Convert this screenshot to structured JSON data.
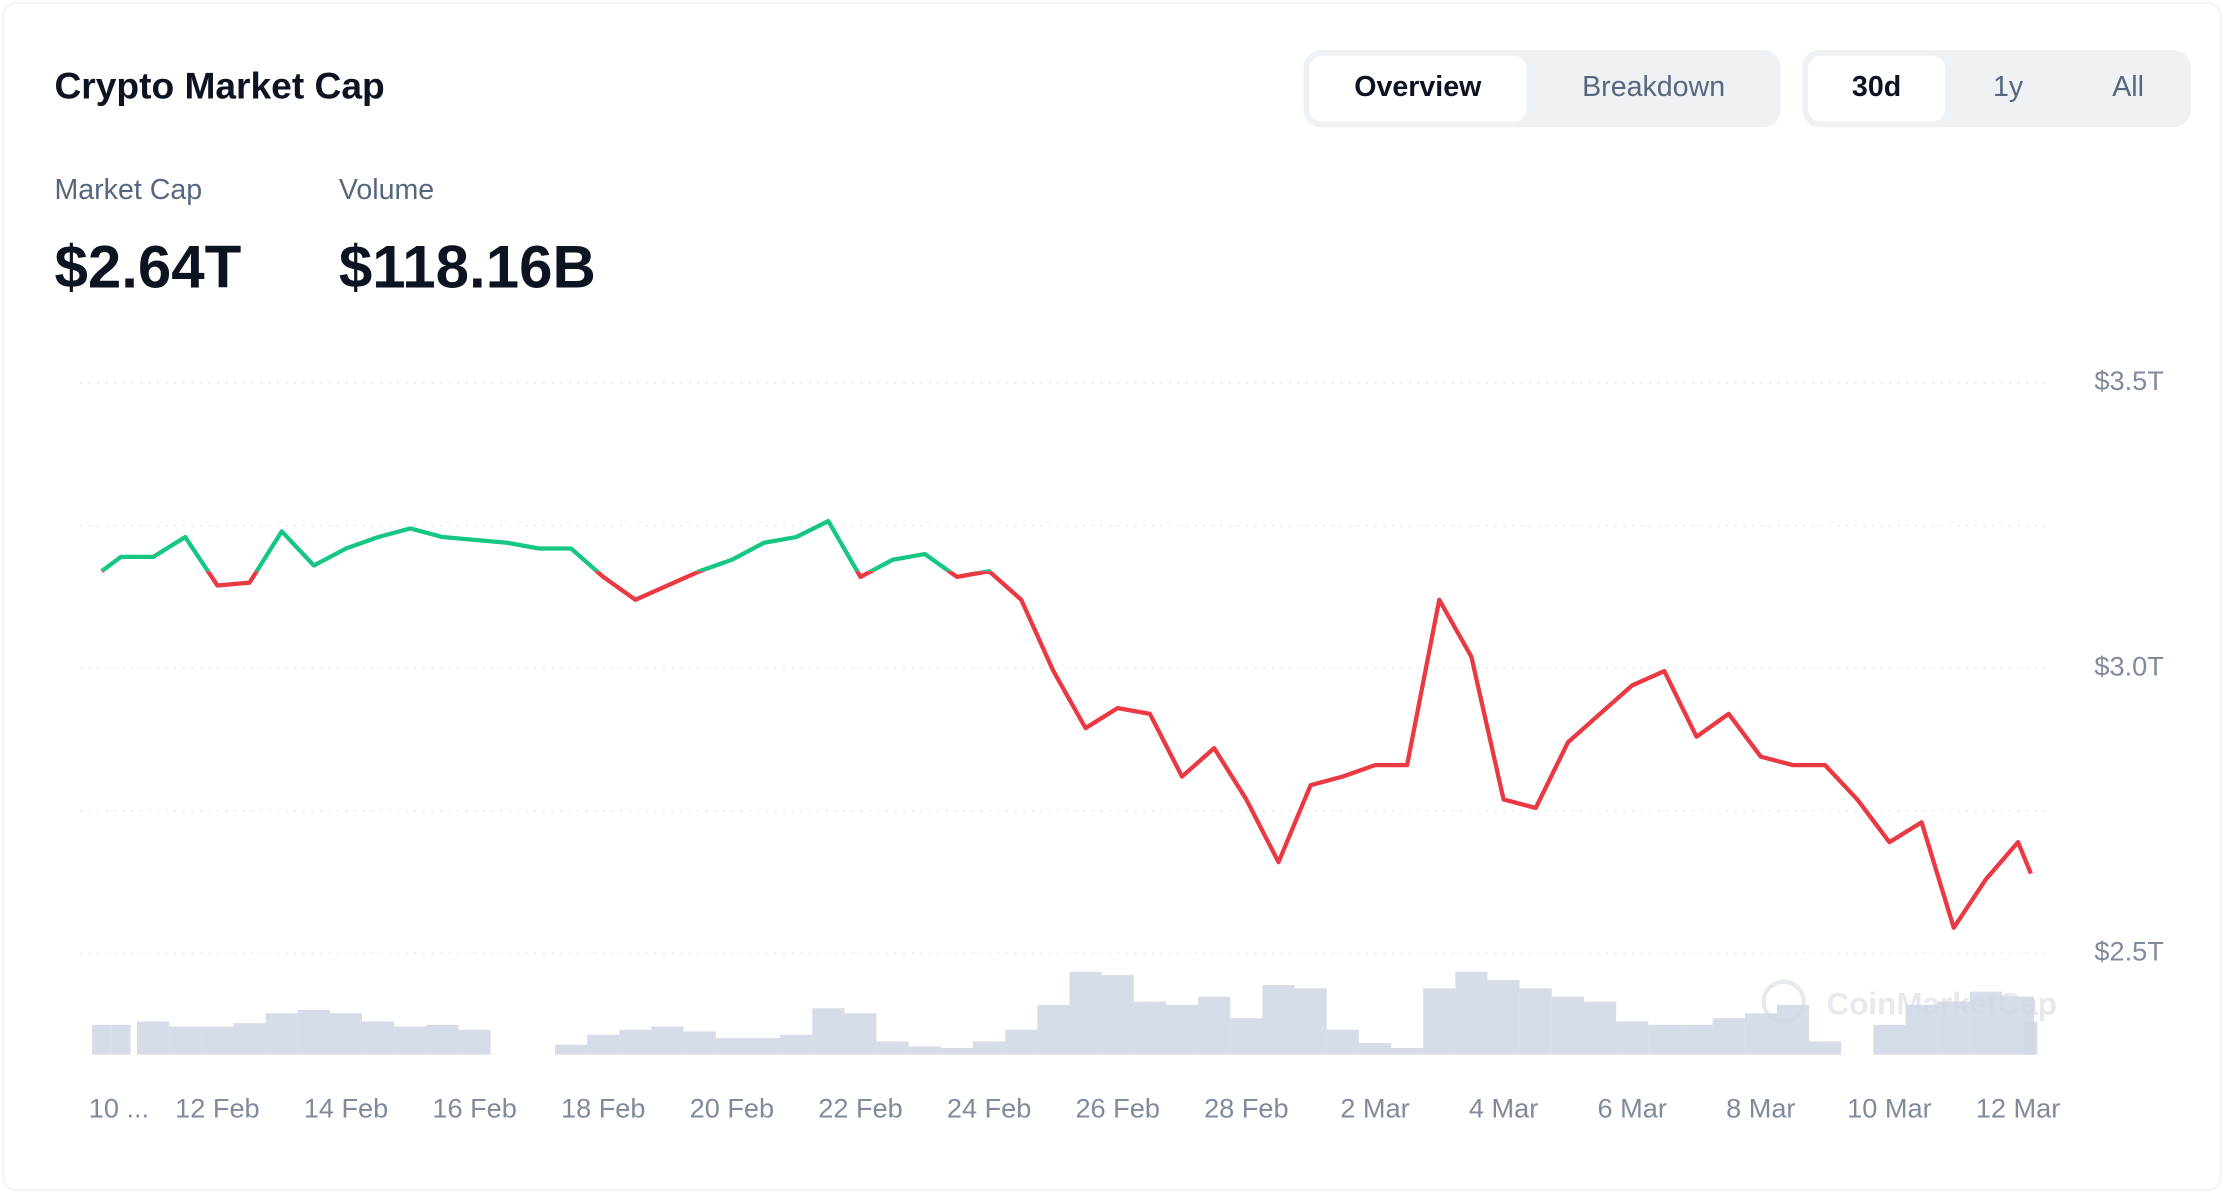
{
  "header": {
    "title": "Crypto Market Cap",
    "tabs": [
      "Overview",
      "Breakdown"
    ],
    "active_tab": 0,
    "ranges": [
      "30d",
      "1y",
      "All"
    ],
    "active_range": 0
  },
  "stats": [
    {
      "label": "Market Cap",
      "value": "$2.64T"
    },
    {
      "label": "Volume",
      "value": "$118.16B"
    }
  ],
  "watermark": "CoinMarketCap",
  "chart_data": {
    "type": "line",
    "x": [
      10.2,
      10.5,
      11,
      11.5,
      12,
      12.5,
      13,
      13.5,
      14,
      14.5,
      15,
      15.5,
      16,
      16.5,
      17,
      17.5,
      18,
      18.5,
      19,
      19.5,
      20,
      20.5,
      21,
      21.5,
      22,
      22.5,
      23,
      23.5,
      24,
      24.5,
      25,
      25.5,
      26,
      26.5,
      27,
      27.5,
      28,
      28.5,
      29,
      29.5,
      30,
      30.5,
      31,
      31.5,
      32,
      32.5,
      33,
      33.5,
      34,
      34.5,
      35,
      35.5,
      36,
      36.5,
      37,
      37.5,
      38,
      38.5,
      39,
      39.5,
      40,
      40.2
    ],
    "values": [
      3.17,
      3.195,
      3.195,
      3.23,
      3.145,
      3.15,
      3.24,
      3.18,
      3.21,
      3.23,
      3.245,
      3.23,
      3.225,
      3.22,
      3.21,
      3.21,
      3.16,
      3.12,
      3.145,
      3.17,
      3.19,
      3.22,
      3.23,
      3.258,
      3.16,
      3.19,
      3.2,
      3.16,
      3.17,
      3.12,
      2.995,
      2.895,
      2.93,
      2.92,
      2.81,
      2.86,
      2.77,
      2.66,
      2.795,
      2.81,
      2.83,
      2.83,
      3.12,
      3.02,
      2.77,
      2.755,
      2.87,
      2.92,
      2.97,
      2.995,
      2.88,
      2.92,
      2.845,
      2.83,
      2.83,
      2.77,
      2.695,
      2.73,
      2.545,
      2.63,
      2.695,
      2.64
    ],
    "volume": [
      18,
      18,
      20,
      17,
      17,
      19,
      25,
      27,
      25,
      20,
      17,
      18,
      15,
      null,
      null,
      6,
      12,
      15,
      17,
      14,
      10,
      10,
      12,
      28,
      25,
      8,
      5,
      4,
      8,
      15,
      30,
      50,
      48,
      32,
      30,
      35,
      22,
      42,
      40,
      15,
      7,
      4,
      40,
      50,
      45,
      40,
      35,
      32,
      20,
      18,
      18,
      22,
      25,
      30,
      8,
      null,
      18,
      30,
      32,
      38,
      35,
      20
    ],
    "up_color": "#16c784",
    "down_color": "#ea3943",
    "volume_color": "#cfd6e4",
    "xlim": [
      9.8,
      40.4
    ],
    "xticks": [
      {
        "value": 10,
        "label": "10 ..."
      },
      {
        "value": 12,
        "label": "12 Feb"
      },
      {
        "value": 14,
        "label": "14 Feb"
      },
      {
        "value": 16,
        "label": "16 Feb"
      },
      {
        "value": 18,
        "label": "18 Feb"
      },
      {
        "value": 20,
        "label": "20 Feb"
      },
      {
        "value": 22,
        "label": "22 Feb"
      },
      {
        "value": 24,
        "label": "24 Feb"
      },
      {
        "value": 26,
        "label": "26 Feb"
      },
      {
        "value": 28,
        "label": "28 Feb"
      },
      {
        "value": 30,
        "label": "2 Mar"
      },
      {
        "value": 32,
        "label": "4 Mar"
      },
      {
        "value": 34,
        "label": "6 Mar"
      },
      {
        "value": 36,
        "label": "8 Mar"
      },
      {
        "value": 38,
        "label": "10 Mar"
      },
      {
        "value": 40,
        "label": "12 Mar"
      }
    ],
    "ylim": [
      2.3,
      3.5
    ],
    "yticks": [
      {
        "value": 3.5,
        "label": "$3.5T"
      },
      {
        "value": 3.0,
        "label": "$3.0T"
      },
      {
        "value": 2.5,
        "label": "$2.5T"
      }
    ],
    "ygrid": [
      2.5,
      2.75,
      3.0,
      3.25,
      3.5
    ],
    "grid": true
  }
}
